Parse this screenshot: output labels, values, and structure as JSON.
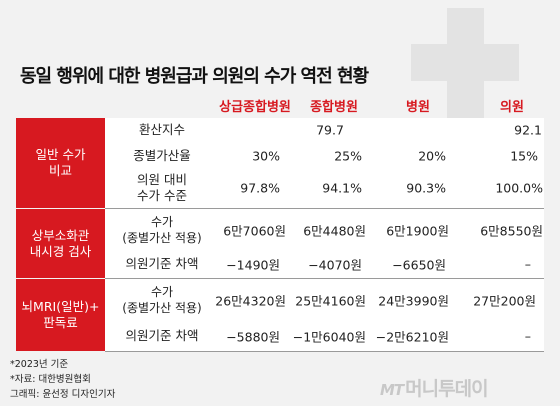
{
  "title": "동일 행위에 대한 병원급과 의원의 수가 역전 현황",
  "columns": [
    "상급종합병원",
    "종합병원",
    "병원",
    "의원"
  ],
  "groups": [
    {
      "label": "일반 수가\n비교"
    },
    {
      "label": "상부소화관\n내시경 검사"
    },
    {
      "label": "뇌MRI(일반)+\n판독료"
    }
  ],
  "rows": [
    {
      "label": "환산지수",
      "values": [
        "",
        "79.7",
        "",
        "92.1"
      ]
    },
    {
      "label": "종별가산율",
      "values": [
        "30%",
        "25%",
        "20%",
        "15%"
      ]
    },
    {
      "label": "의원 대비\n수가 수준",
      "values": [
        "97.8%",
        "94.1%",
        "90.3%",
        "100.0%"
      ]
    },
    {
      "label": "수가\n(종별가산 적용)",
      "values": [
        "6만7060원",
        "6만4480원",
        "6만1900원",
        "6만8550원"
      ]
    },
    {
      "label": "의원기준 차액",
      "values": [
        "−1490원",
        "−4070원",
        "−6650원",
        "–"
      ]
    },
    {
      "label": "수가\n(종별가산 적용)",
      "values": [
        "26만4320원",
        "25만4160원",
        "24만3990원",
        "27만200원"
      ]
    },
    {
      "label": "의원기준 차액",
      "values": [
        "−5880원",
        "−1만6040원",
        "−2만6210원",
        "–"
      ]
    }
  ],
  "notes": [
    "*2023년 기준",
    "*자료: 대한병원협회",
    "그래픽: 윤선정 디자인기자"
  ],
  "logo": {
    "mark": "MT",
    "name": "머니투데이"
  },
  "colors": {
    "accent": "#d71920",
    "background": "#f2f2f2",
    "row": "#ffffff"
  }
}
